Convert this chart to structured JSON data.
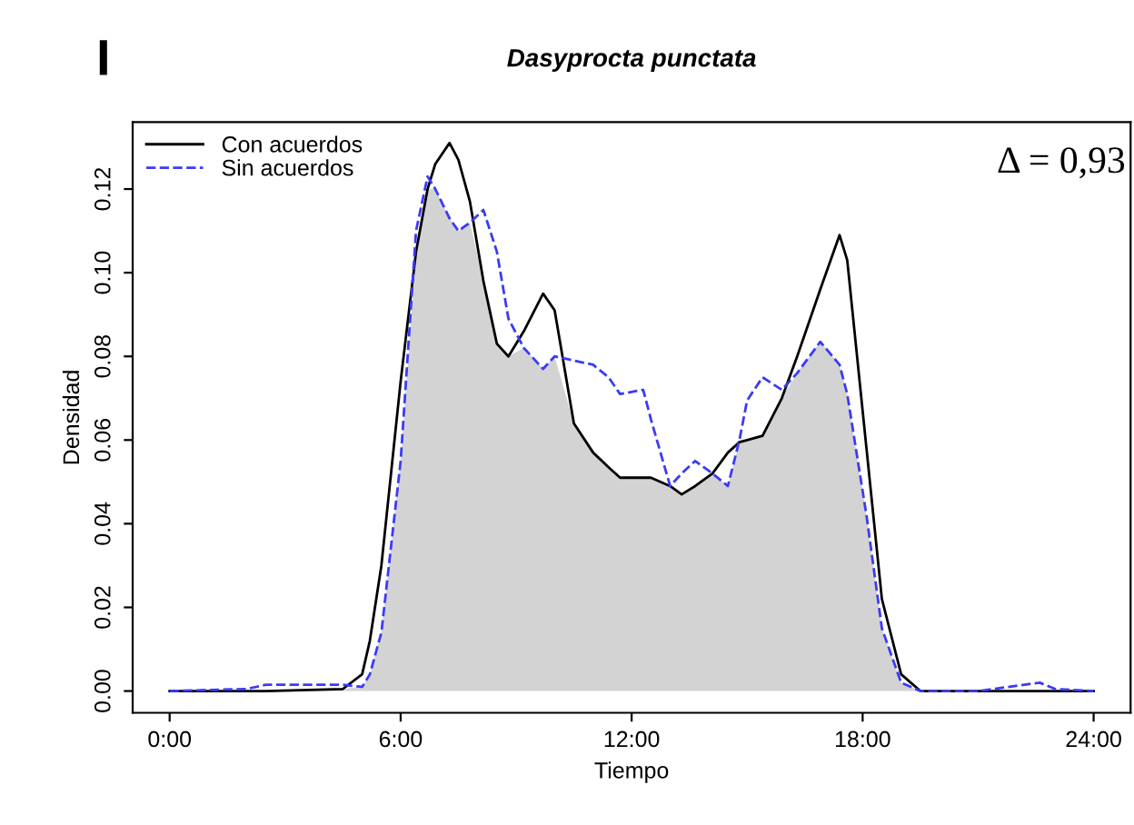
{
  "chart_data": {
    "type": "line",
    "title": "Dasyprocta punctata",
    "xlabel": "Tiempo",
    "ylabel": "Densidad",
    "annotations": [
      "I",
      "Δ = 0,93"
    ],
    "x": [
      0,
      2,
      2.5,
      4.5,
      5,
      5.2,
      5.5,
      6,
      6.4,
      6.7,
      6.9,
      7.27,
      7.5,
      7.8,
      8.15,
      8.5,
      8.8,
      9.2,
      9.7,
      10,
      10.5,
      11,
      11.4,
      11.7,
      12.3,
      12.5,
      13,
      13.3,
      13.65,
      14.1,
      14.5,
      14.8,
      15,
      15.4,
      15.9,
      16.3,
      16.9,
      17.4,
      17.6,
      18.1,
      18.5,
      19,
      19.5,
      21,
      22.6,
      23,
      24
    ],
    "series": [
      {
        "type": "area",
        "color": "#d3d3d3",
        "values": [
          0,
          0,
          0,
          0.0005,
          0.001,
          0.004,
          0.014,
          0.055,
          0.105,
          0.12,
          0.12,
          0.113,
          0.11,
          0.112,
          0.098,
          0.083,
          0.08,
          0.082,
          0.077,
          0.08,
          0.064,
          0.057,
          0.0535,
          0.051,
          0.051,
          0.051,
          0.049,
          0.047,
          0.049,
          0.052,
          0.049,
          0.0595,
          0.06,
          0.061,
          0.07,
          0.076,
          0.0835,
          0.078,
          0.071,
          0.042,
          0.015,
          0.002,
          0,
          0,
          0,
          0,
          0
        ]
      },
      {
        "name": "Con acuerdos",
        "color": "#000000",
        "line_style": "solid",
        "values": [
          0,
          0,
          0,
          0.0005,
          0.004,
          0.012,
          0.03,
          0.074,
          0.105,
          0.12,
          0.126,
          0.131,
          0.127,
          0.117,
          0.098,
          0.083,
          0.08,
          0.086,
          0.095,
          0.091,
          0.064,
          0.057,
          0.0535,
          0.051,
          0.051,
          0.051,
          0.049,
          0.047,
          0.049,
          0.052,
          0.057,
          0.0595,
          0.06,
          0.061,
          0.07,
          0.08,
          0.096,
          0.109,
          0.103,
          0.058,
          0.022,
          0.004,
          0,
          0,
          0,
          0,
          0
        ]
      },
      {
        "name": "Sin acuerdos",
        "color": "#3b3bf5",
        "line_style": "dashed",
        "values": [
          0,
          0.0005,
          0.0015,
          0.0015,
          0.001,
          0.004,
          0.014,
          0.055,
          0.11,
          0.123,
          0.12,
          0.113,
          0.11,
          0.112,
          0.115,
          0.105,
          0.089,
          0.082,
          0.077,
          0.08,
          0.079,
          0.078,
          0.075,
          0.071,
          0.072,
          0.065,
          0.049,
          0.052,
          0.055,
          0.052,
          0.049,
          0.06,
          0.0695,
          0.075,
          0.072,
          0.076,
          0.0835,
          0.078,
          0.071,
          0.042,
          0.015,
          0.002,
          0,
          0,
          0.002,
          0.0005,
          0
        ]
      }
    ],
    "xlim": [
      -0.96,
      24.96
    ],
    "ylim": [
      -0.0052,
      0.136
    ],
    "xticks": [
      {
        "value": 0,
        "label": "0:00"
      },
      {
        "value": 6,
        "label": "6:00"
      },
      {
        "value": 12,
        "label": "12:00"
      },
      {
        "value": 18,
        "label": "18:00"
      },
      {
        "value": 24,
        "label": "24:00"
      }
    ],
    "yticks": [
      {
        "value": 0,
        "label": "0.00"
      },
      {
        "value": 0.02,
        "label": "0.02"
      },
      {
        "value": 0.04,
        "label": "0.04"
      },
      {
        "value": 0.06,
        "label": "0.06"
      },
      {
        "value": 0.08,
        "label": "0.08"
      },
      {
        "value": 0.1,
        "label": "0.10"
      },
      {
        "value": 0.12,
        "label": "0.12"
      }
    ],
    "legend": "top left",
    "grid": false
  }
}
